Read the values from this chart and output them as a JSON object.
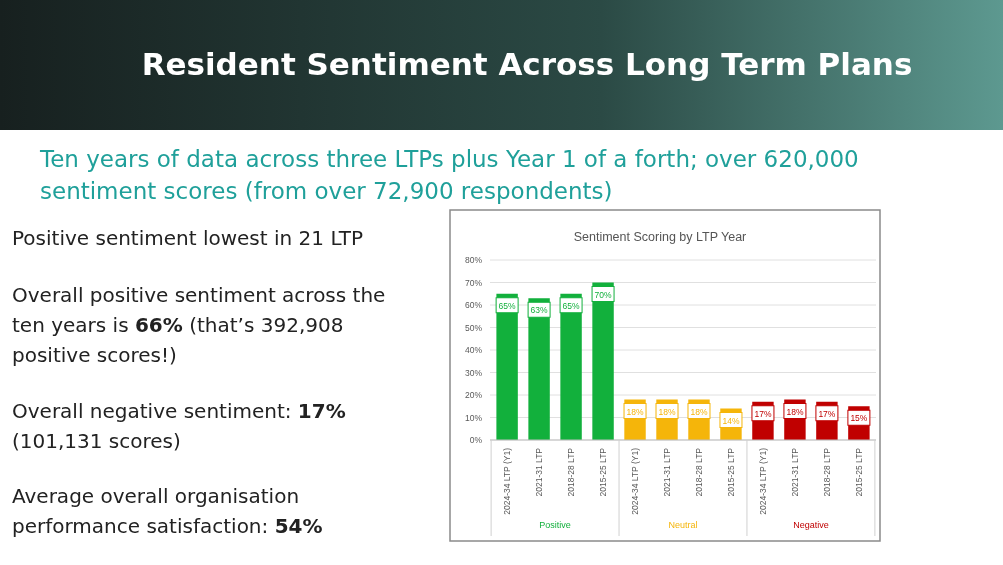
{
  "chart_data": {
    "type": "bar",
    "title": "Resident Sentiment Across Long Term Plans",
    "subtitle": "Ten years of data across three LTPs plus Year 1 of a forth; over 620,000 sentiment scores (from over 72,900 respondents)",
    "annotations": [
      "Sentiment Scoring by LTP Year",
      "Positive sentiment lowest in 21 LTP",
      "Overall positive sentiment across the ten years is 66% (that’s 392,908 positive scores!)",
      "Overall negative sentiment: 17% (101,131 scores)",
      "Average overall organisation performance satisfaction: 54%"
    ],
    "categories": [
      "2024-34 LTP (Y1)",
      "2021-31 LTP",
      "2018-28 LTP",
      "2015-25 LTP",
      "2024-34 LTP (Y1)",
      "2021-31 LTP",
      "2018-28 LTP",
      "2015-25 LTP",
      "2024-34 LTP (Y1)",
      "2021-31 LTP",
      "2018-28 LTP",
      "2015-25 LTP"
    ],
    "series": [
      {
        "name": "Positive",
        "color": "#12b03c",
        "values": [
          65,
          63,
          65,
          70,
          null,
          null,
          null,
          null,
          null,
          null,
          null,
          null
        ],
        "value_labels": [
          "65%",
          "63%",
          "65%",
          "70%",
          null,
          null,
          null,
          null,
          null,
          null,
          null,
          null
        ]
      },
      {
        "name": "Neutral",
        "color": "#f5b50a",
        "values": [
          null,
          null,
          null,
          null,
          18,
          18,
          18,
          14,
          null,
          null,
          null,
          null
        ],
        "value_labels": [
          null,
          null,
          null,
          null,
          "18%",
          "18%",
          "18%",
          "14%",
          null,
          null,
          null,
          null
        ]
      },
      {
        "name": "Negative",
        "color": "#c00000",
        "values": [
          null,
          null,
          null,
          null,
          null,
          null,
          null,
          null,
          17,
          18,
          17,
          15
        ],
        "value_labels": [
          null,
          null,
          null,
          null,
          null,
          null,
          null,
          null,
          "17%",
          "18%",
          "17%",
          "15%"
        ]
      }
    ],
    "ylim": [
      0,
      80
    ],
    "yticks": [
      {
        "value": 0,
        "label": "0%"
      },
      {
        "value": 10,
        "label": "10%"
      },
      {
        "value": 20,
        "label": "20%"
      },
      {
        "value": 30,
        "label": "30%"
      },
      {
        "value": 40,
        "label": "40%"
      },
      {
        "value": 50,
        "label": "50%"
      },
      {
        "value": 60,
        "label": "60%"
      },
      {
        "value": 70,
        "label": "70%"
      },
      {
        "value": 80,
        "label": "80%"
      }
    ],
    "grid": "y"
  }
}
